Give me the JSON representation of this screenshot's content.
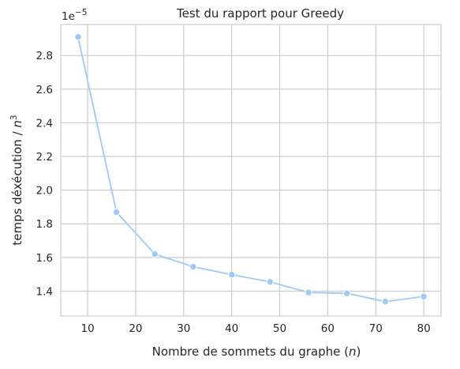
{
  "chart_data": {
    "type": "line",
    "title": "Test du rapport pour Greedy",
    "xlabel_text": "Nombre de sommets du graphe (",
    "xlabel_var": "n",
    "xlabel_close": ")",
    "ylabel_text": "temps déxécution / ",
    "ylabel_var": "n",
    "ylabel_exp": "3",
    "y_offset_base": "1e",
    "y_offset_exp": "−5",
    "xlim": [
      4.4,
      83.6
    ],
    "ylim": [
      1.252,
      2.984
    ],
    "xticks": [
      10,
      20,
      30,
      40,
      50,
      60,
      70,
      80
    ],
    "xtick_labels": [
      "10",
      "20",
      "30",
      "40",
      "50",
      "60",
      "70",
      "80"
    ],
    "yticks": [
      1.4,
      1.6,
      1.8,
      2.0,
      2.2,
      2.4,
      2.6,
      2.8
    ],
    "ytick_labels": [
      "1.4",
      "1.6",
      "1.8",
      "2.0",
      "2.2",
      "2.4",
      "2.6",
      "2.8"
    ],
    "grid": true,
    "colors": {
      "line": "#a1c9f4",
      "grid": "#cccccc",
      "axes": "#cccccc",
      "text": "#262626"
    },
    "series": [
      {
        "x": [
          8,
          16,
          24,
          32,
          40,
          48,
          56,
          64,
          72,
          80
        ],
        "y": [
          2.91,
          1.87,
          1.62,
          1.545,
          1.498,
          1.455,
          1.392,
          1.387,
          1.338,
          1.368
        ]
      }
    ]
  }
}
